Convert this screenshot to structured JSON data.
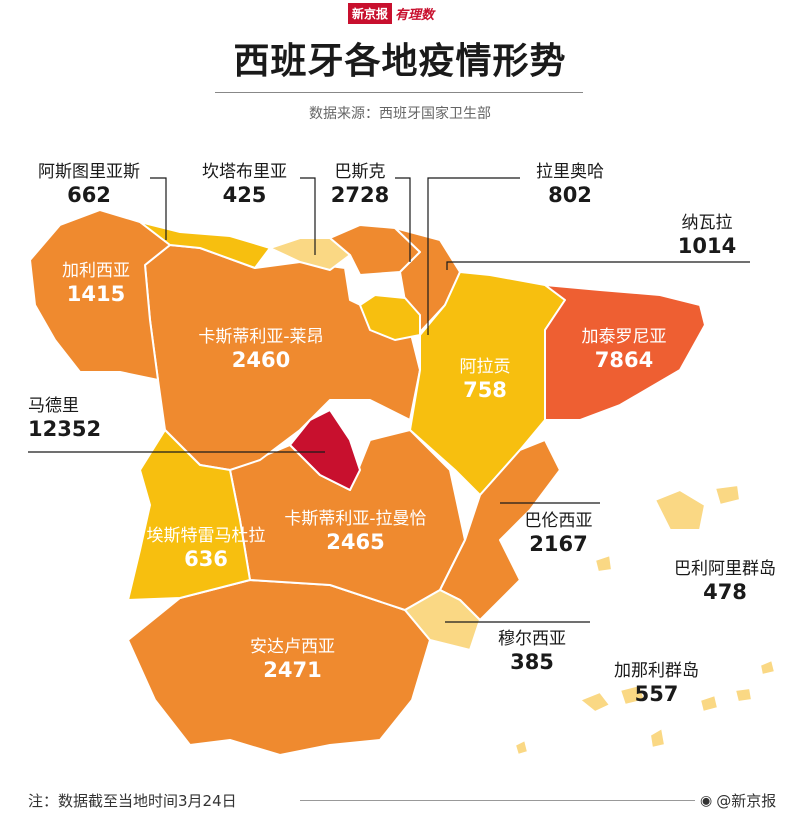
{
  "header": {
    "brand_tag": "新京报",
    "brand_script": "有理数",
    "title": "西班牙各地疫情形势",
    "source": "数据来源：西班牙国家卫生部"
  },
  "legend_colors": {
    "very_high": "#c8102e",
    "high": "#ee5f32",
    "medium": "#ef8a2f",
    "low": "#f7bf0f",
    "lowest": "#fad884"
  },
  "regions": {
    "galicia": {
      "name": "加利西亚",
      "value": "1415"
    },
    "asturias": {
      "name": "阿斯图里亚斯",
      "value": "662"
    },
    "cantabria": {
      "name": "坎塔布里亚",
      "value": "425"
    },
    "basque": {
      "name": "巴斯克",
      "value": "2728"
    },
    "rioja": {
      "name": "拉里奥哈",
      "value": "802"
    },
    "navarra": {
      "name": "纳瓦拉",
      "value": "1014"
    },
    "castilla_leon": {
      "name": "卡斯蒂利亚-莱昂",
      "value": "2460"
    },
    "aragon": {
      "name": "阿拉贡",
      "value": "758"
    },
    "catalonia": {
      "name": "加泰罗尼亚",
      "value": "7864"
    },
    "madrid": {
      "name": "马德里",
      "value": "12352"
    },
    "extremadura": {
      "name": "埃斯特雷马杜拉",
      "value": "636"
    },
    "castilla_mancha": {
      "name": "卡斯蒂利亚-拉曼恰",
      "value": "2465"
    },
    "valencia": {
      "name": "巴伦西亚",
      "value": "2167"
    },
    "balearic": {
      "name": "巴利阿里群岛",
      "value": "478"
    },
    "murcia": {
      "name": "穆尔西亚",
      "value": "385"
    },
    "andalusia": {
      "name": "安达卢西亚",
      "value": "2471"
    },
    "canary": {
      "name": "加那利群岛",
      "value": "557"
    }
  },
  "footer": {
    "note": "注：数据截至当地时间3月24日",
    "weibo": "@新京报"
  }
}
